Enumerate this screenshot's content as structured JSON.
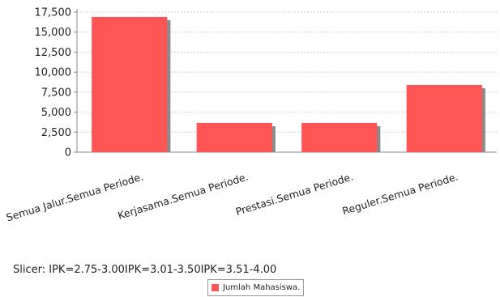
{
  "chart_data": {
    "type": "bar",
    "categories": [
      "Semua Jalur.Semua Periode.",
      "Kerjasama.Semua Periode.",
      "Prestasi.Semua Periode.",
      "Reguler.Semua Periode."
    ],
    "series": [
      {
        "name": "Jumlah Mahasiswa.",
        "values": [
          16900,
          3650,
          3650,
          8400
        ],
        "color": "#ff5555"
      }
    ],
    "ylim": [
      0,
      17500
    ],
    "yticks": [
      "0",
      "2,500",
      "5,000",
      "7,500",
      "10,000",
      "12,500",
      "15,000",
      "17,500"
    ],
    "ytick_values": [
      0,
      2500,
      5000,
      7500,
      10000,
      12500,
      15000,
      17500
    ],
    "grid": true,
    "legend_position": "bottom"
  },
  "slicer_text": "Slicer: IPK=2.75-3.00IPK=3.01-3.50IPK=3.51-4.00",
  "legend": {
    "label": "Jumlah Mahasiswa."
  }
}
